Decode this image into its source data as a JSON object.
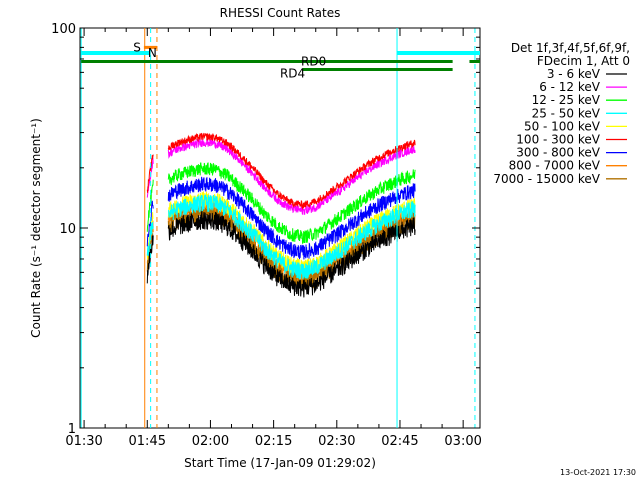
{
  "chart_data": {
    "type": "line",
    "title": "RHESSI Count Rates",
    "xlabel": "Start Time (17-Jan-09 01:29:02)",
    "ylabel": "Count Rate (s⁻¹ detector segment⁻¹)",
    "yscale": "log",
    "ylim": [
      1,
      100
    ],
    "xlim_minutes": [
      89.03,
      184.0
    ],
    "x_ticks": [
      {
        "label": "01:30",
        "min": 90
      },
      {
        "label": "01:45",
        "min": 105
      },
      {
        "label": "02:00",
        "min": 120
      },
      {
        "label": "02:15",
        "min": 135
      },
      {
        "label": "02:30",
        "min": 150
      },
      {
        "label": "02:45",
        "min": 165
      },
      {
        "label": "03:00",
        "min": 180
      }
    ],
    "y_ticks": [
      {
        "label": "1",
        "value": 1
      },
      {
        "label": "10",
        "value": 10
      },
      {
        "label": "100",
        "value": 100
      }
    ],
    "legend_header": [
      "Det 1f,3f,4f,5f,6f,9f,",
      "FDecim 1, Att 0"
    ],
    "legend_position": "right",
    "series": [
      {
        "name": "3 - 6 keV",
        "color": "#000000",
        "scale": 0.41
      },
      {
        "name": "6 - 12 keV",
        "color": "#ff00ff",
        "scale": 1.0
      },
      {
        "name": "12 - 25 keV",
        "color": "#00ff00",
        "scale": 0.74
      },
      {
        "name": "25 - 50 keV",
        "color": "#00ffff",
        "scale": 0.5
      },
      {
        "name": "50 - 100 keV",
        "color": "#ffff00",
        "scale": 0.52
      },
      {
        "name": "100 - 300 keV",
        "color": "#ff0000",
        "scale": 1.07
      },
      {
        "name": "300 - 800 keV",
        "color": "#0000ff",
        "scale": 0.62
      },
      {
        "name": "800 - 7000 keV",
        "color": "#ff8000",
        "scale": 0.47
      },
      {
        "name": "7000 - 15000 keV",
        "color": "#b07000",
        "scale": 0.44
      }
    ],
    "base_profile": {
      "min": [
        110,
        112,
        115,
        118,
        121,
        124,
        127,
        130,
        133,
        136,
        139,
        142,
        145,
        148,
        151,
        154,
        157,
        160,
        163,
        166,
        168.6
      ],
      "value": [
        23.5,
        24.8,
        25.9,
        26.8,
        26.6,
        24.8,
        21.7,
        18.7,
        15.8,
        13.8,
        12.6,
        12.2,
        12.7,
        14.0,
        15.5,
        17.3,
        19.2,
        21.0,
        22.6,
        24.0,
        25.0
      ]
    },
    "pre_segment": {
      "min_start": 105.0,
      "min_end": 106.4,
      "value_start": 14.0,
      "value_end": 22.0
    },
    "annotations": {
      "attenuator_S": {
        "label": "S",
        "min_start": 104.2,
        "min_end": 107.3,
        "level": 80
      },
      "night_N": {
        "label": "N",
        "min_start": 89.3,
        "min_end": 105.8,
        "level": 75,
        "resume_start": 164.3,
        "resume_end": 184.0
      },
      "saa_RD0": {
        "label": "RD0",
        "min_start": 89.3,
        "min_end": 177.5,
        "level": 68,
        "resume_start": 181.5,
        "resume_end": 184.0
      },
      "saa_RD4": {
        "label": "RD4",
        "min_start": 141.8,
        "min_end": 177.5,
        "level": 62
      }
    },
    "vlines": [
      {
        "min": 89.3,
        "color": "#00ffff",
        "style": "solid"
      },
      {
        "min": 104.4,
        "color": "#ff8000",
        "style": "solid"
      },
      {
        "min": 105.8,
        "color": "#00ffff",
        "style": "dashed"
      },
      {
        "min": 107.3,
        "color": "#ff8000",
        "style": "dashed"
      },
      {
        "min": 164.3,
        "color": "#00ffff",
        "style": "solid"
      },
      {
        "min": 182.8,
        "color": "#00ffff",
        "style": "dashed"
      }
    ],
    "footer_date": "13-Oct-2021 17:30"
  }
}
